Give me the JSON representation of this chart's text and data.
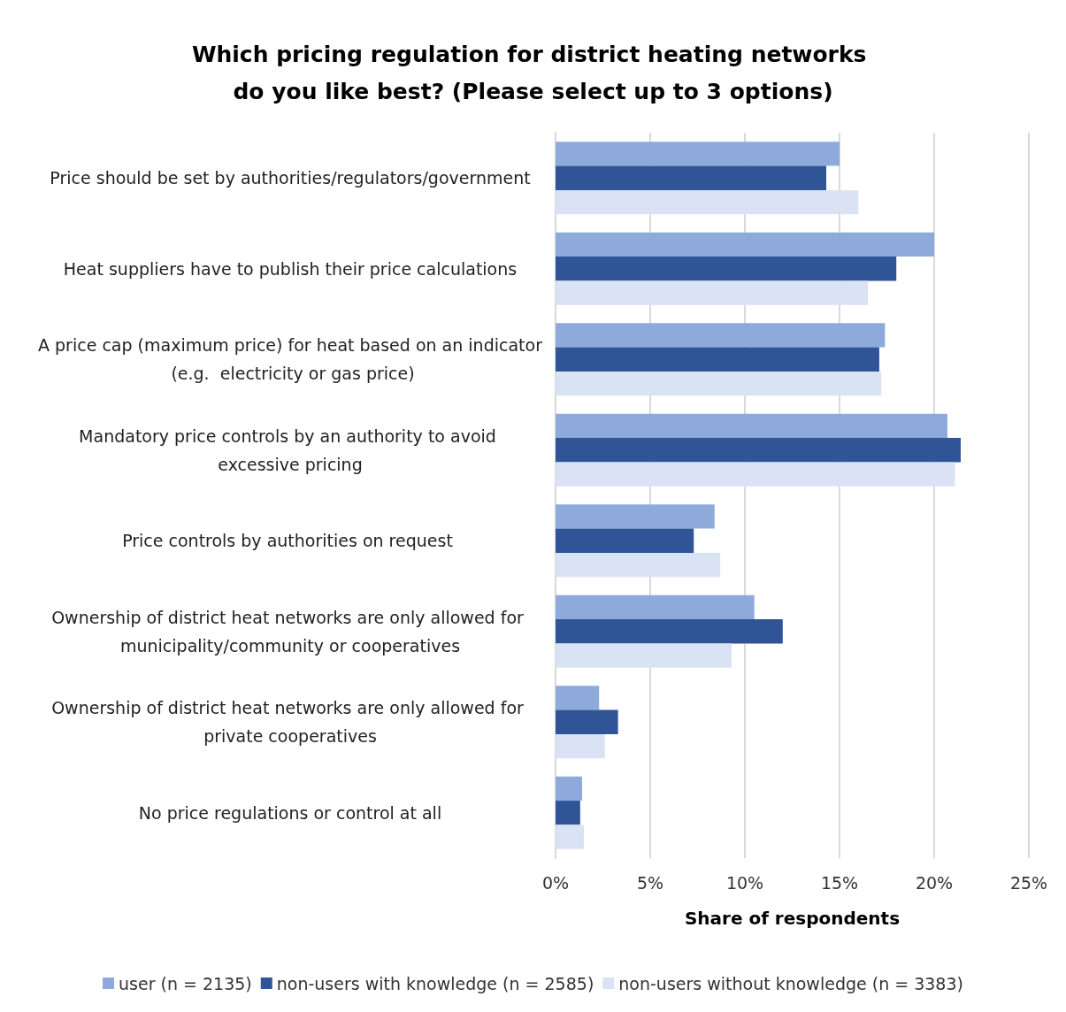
{
  "chart_data": {
    "type": "bar",
    "orientation": "horizontal",
    "title": "Which pricing regulation for district heating networks do you like best? (Please select up to 3 options)",
    "xlabel": "Share of respondents",
    "categories": [
      "Price should be set by authorities/regulators/government",
      "Heat suppliers have to publish their price calculations",
      "A price cap (maximum price) for heat based on an indicator (e.g.  electricity or gas price)",
      "Mandatory price controls by an authority to avoid excessive pricing",
      "Price controls by authorities on request ",
      "Ownership of district heat networks are only allowed for municipality/community or cooperatives",
      "Ownership of district heat networks are only allowed for private cooperatives",
      "No price regulations or control at all"
    ],
    "series": [
      {
        "name": "user (n = 2135)",
        "color": "#8eaadb",
        "values": [
          15.0,
          20.0,
          17.4,
          20.7,
          8.4,
          10.5,
          2.3,
          1.4
        ]
      },
      {
        "name": "non-users with knowledge (n = 2585)",
        "color": "#2f5597",
        "values": [
          14.3,
          18.0,
          17.1,
          21.4,
          7.3,
          12.0,
          3.3,
          1.3
        ]
      },
      {
        "name": "non-users without knowledge (n = 3383)",
        "color": "#dae3f3",
        "values": [
          16.0,
          16.5,
          17.2,
          21.1,
          8.7,
          9.3,
          2.6,
          1.5
        ]
      }
    ],
    "xlim": [
      0,
      25
    ],
    "xticks": [
      {
        "value": 0,
        "label": "0%"
      },
      {
        "value": 5,
        "label": "5%"
      },
      {
        "value": 10,
        "label": "10%"
      },
      {
        "value": 15,
        "label": "15%"
      },
      {
        "value": 20,
        "label": "20%"
      },
      {
        "value": 25,
        "label": "25%"
      }
    ],
    "grid": "x",
    "legend": "bottom"
  }
}
